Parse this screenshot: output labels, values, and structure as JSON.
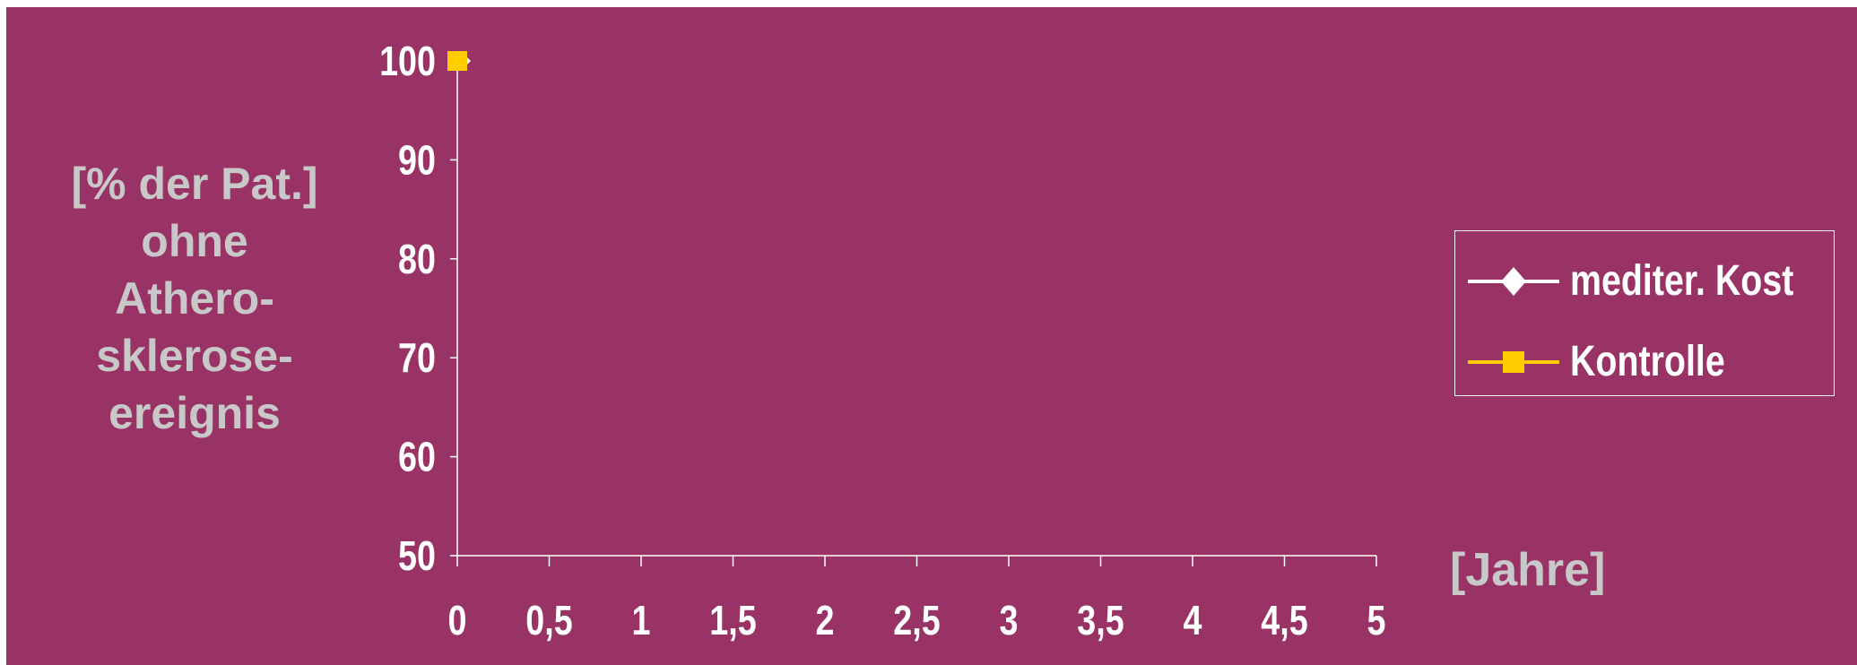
{
  "chart_data": {
    "type": "line",
    "title": "",
    "ylabel_lines": [
      "[% der Pat.]",
      "ohne",
      "Athero-",
      "sklerose-",
      "ereignis"
    ],
    "xlabel": "[Jahre]",
    "xlim": [
      0,
      5
    ],
    "ylim": [
      50,
      100
    ],
    "x_ticks": [
      "0",
      "0,5",
      "1",
      "1,5",
      "2",
      "2,5",
      "3",
      "3,5",
      "4",
      "4,5",
      "5"
    ],
    "y_ticks": [
      "50",
      "60",
      "70",
      "80",
      "90",
      "100"
    ],
    "grid": false,
    "legend_position": "right",
    "series": [
      {
        "name": "mediter. Kost",
        "color": "#ffffff",
        "marker": "diamond",
        "x": [
          0
        ],
        "y": [
          100
        ]
      },
      {
        "name": "Kontrolle",
        "color": "#ffcc00",
        "marker": "square",
        "x": [
          0
        ],
        "y": [
          100
        ]
      }
    ]
  },
  "colors": {
    "background": "#993366",
    "axis": "#ffffff",
    "label": "#c8c8c8"
  }
}
